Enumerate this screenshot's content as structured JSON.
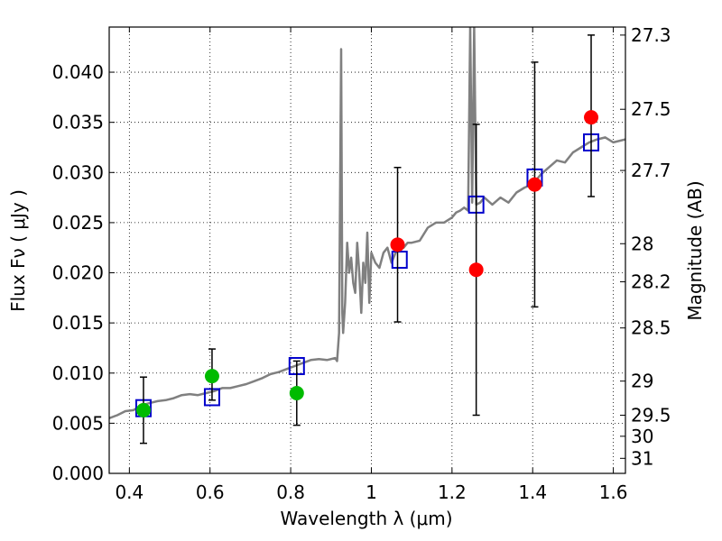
{
  "chart_data": {
    "type": "scatter",
    "xlabel": "Wavelength  λ (μm)",
    "ylabel": "Flux  Fν  ( μJy )",
    "y2label": "Magnitude (AB)",
    "xlim": [
      0.35,
      1.63
    ],
    "ylim": [
      0.0,
      0.0445
    ],
    "grid": true,
    "x_ticks": [
      0.4,
      0.6,
      0.8,
      1.0,
      1.2,
      1.4,
      1.6
    ],
    "x_tick_labels": [
      "0.4",
      "0.6",
      "0.8",
      "1",
      "1.2",
      "1.4",
      "1.6"
    ],
    "y_ticks": [
      0.0,
      0.005,
      0.01,
      0.015,
      0.02,
      0.025,
      0.03,
      0.035,
      0.04
    ],
    "y_tick_labels": [
      "0.000",
      "0.005",
      "0.010",
      "0.015",
      "0.020",
      "0.025",
      "0.030",
      "0.035",
      "0.040"
    ],
    "y2_ticks": [
      {
        "label": "27.3",
        "flux": 0.0437
      },
      {
        "label": "27.5",
        "flux": 0.0363
      },
      {
        "label": "27.7",
        "flux": 0.0302
      },
      {
        "label": "28",
        "flux": 0.0229
      },
      {
        "label": "28.2",
        "flux": 0.0191
      },
      {
        "label": "28.5",
        "flux": 0.0145
      },
      {
        "label": "29",
        "flux": 0.0092
      },
      {
        "label": "29.5",
        "flux": 0.0058
      },
      {
        "label": "30",
        "flux": 0.0037
      },
      {
        "label": "31",
        "flux": 0.0015
      }
    ],
    "series": [
      {
        "type": "line",
        "color": "#808080",
        "x": [
          0.35,
          0.37,
          0.39,
          0.41,
          0.43,
          0.45,
          0.47,
          0.49,
          0.51,
          0.53,
          0.55,
          0.57,
          0.59,
          0.61,
          0.63,
          0.65,
          0.67,
          0.69,
          0.71,
          0.73,
          0.75,
          0.77,
          0.79,
          0.81,
          0.83,
          0.85,
          0.87,
          0.89,
          0.91,
          0.915,
          0.92,
          0.925,
          0.928,
          0.93,
          0.935,
          0.94,
          0.945,
          0.95,
          0.955,
          0.96,
          0.965,
          0.97,
          0.975,
          0.98,
          0.985,
          0.99,
          0.995,
          1.0,
          1.01,
          1.02,
          1.03,
          1.04,
          1.05,
          1.06,
          1.07,
          1.08,
          1.09,
          1.1,
          1.12,
          1.14,
          1.16,
          1.18,
          1.2,
          1.21,
          1.22,
          1.23,
          1.24,
          1.245,
          1.25,
          1.255,
          1.26,
          1.27,
          1.28,
          1.3,
          1.32,
          1.34,
          1.36,
          1.38,
          1.4,
          1.42,
          1.44,
          1.46,
          1.48,
          1.5,
          1.52,
          1.54,
          1.56,
          1.58,
          1.6,
          1.63
        ],
        "y": [
          0.0055,
          0.0058,
          0.0062,
          0.0063,
          0.0068,
          0.007,
          0.0072,
          0.0073,
          0.0075,
          0.0078,
          0.0079,
          0.0078,
          0.008,
          0.0082,
          0.0085,
          0.0085,
          0.0087,
          0.0089,
          0.0092,
          0.0095,
          0.0099,
          0.0101,
          0.0104,
          0.0107,
          0.011,
          0.0113,
          0.0114,
          0.0113,
          0.0115,
          0.0112,
          0.014,
          0.0423,
          0.016,
          0.014,
          0.017,
          0.023,
          0.02,
          0.0215,
          0.019,
          0.018,
          0.023,
          0.02,
          0.016,
          0.021,
          0.019,
          0.024,
          0.017,
          0.022,
          0.021,
          0.0205,
          0.022,
          0.0225,
          0.021,
          0.022,
          0.0228,
          0.0225,
          0.023,
          0.023,
          0.0232,
          0.0245,
          0.025,
          0.025,
          0.0255,
          0.026,
          0.0262,
          0.0265,
          0.0262,
          0.0445,
          0.027,
          0.0445,
          0.0268,
          0.027,
          0.0275,
          0.0268,
          0.0275,
          0.027,
          0.028,
          0.0285,
          0.0288,
          0.0298,
          0.0305,
          0.0312,
          0.031,
          0.032,
          0.0325,
          0.033,
          0.0333,
          0.0335,
          0.033,
          0.0333
        ]
      },
      {
        "type": "scatter",
        "marker": "square",
        "color": "#0000cc",
        "x": [
          0.435,
          0.605,
          0.815,
          1.07,
          1.26,
          1.405,
          1.545
        ],
        "y": [
          0.0065,
          0.0076,
          0.0107,
          0.0213,
          0.0268,
          0.0295,
          0.033
        ]
      },
      {
        "type": "scatter",
        "marker": "circle",
        "color": "#00bb00",
        "x": [
          0.435,
          0.605,
          0.815
        ],
        "y": [
          0.0063,
          0.0097,
          0.008
        ],
        "err": [
          [
            0.003,
            0.0096
          ],
          [
            0.0073,
            0.0124
          ],
          [
            0.0048,
            0.0112
          ]
        ]
      },
      {
        "type": "scatter",
        "marker": "circle",
        "color": "#ff0000",
        "x": [
          1.065,
          1.26,
          1.405,
          1.545
        ],
        "y": [
          0.0228,
          0.0203,
          0.0288,
          0.0355
        ],
        "err": [
          [
            0.0151,
            0.0305
          ],
          [
            0.0058,
            0.0348
          ],
          [
            0.0166,
            0.041
          ],
          [
            0.0276,
            0.0437
          ]
        ]
      }
    ]
  }
}
